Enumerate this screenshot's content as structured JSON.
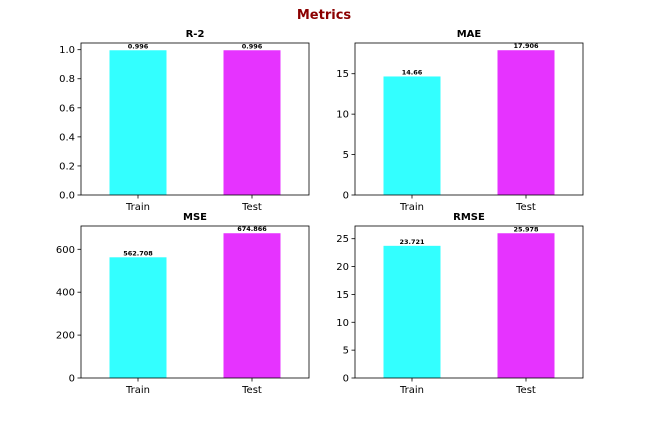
{
  "figure": {
    "suptitle": "Metrics",
    "suptitle_color": "#8b0000"
  },
  "colors": {
    "train": "#33ffff",
    "test": "#e633ff"
  },
  "chart_data": [
    {
      "type": "bar",
      "title": "R-2",
      "categories": [
        "Train",
        "Test"
      ],
      "values": [
        0.996,
        0.996
      ],
      "value_labels": [
        "0.996",
        "0.996"
      ],
      "ylim": [
        0,
        1.046
      ],
      "yticks": [
        0.0,
        0.2,
        0.4,
        0.6,
        0.8,
        1.0
      ],
      "ytick_labels": [
        "0.0",
        "0.2",
        "0.4",
        "0.6",
        "0.8",
        "1.0"
      ],
      "grid": false,
      "xlabel": "",
      "ylabel": ""
    },
    {
      "type": "bar",
      "title": "MAE",
      "categories": [
        "Train",
        "Test"
      ],
      "values": [
        14.66,
        17.906
      ],
      "value_labels": [
        "14.66",
        "17.906"
      ],
      "ylim": [
        0,
        18.8
      ],
      "yticks": [
        0,
        5,
        10,
        15
      ],
      "ytick_labels": [
        "0",
        "5",
        "10",
        "15"
      ],
      "grid": false,
      "xlabel": "",
      "ylabel": ""
    },
    {
      "type": "bar",
      "title": "MSE",
      "categories": [
        "Train",
        "Test"
      ],
      "values": [
        562.708,
        674.866
      ],
      "value_labels": [
        "562.708",
        "674.866"
      ],
      "ylim": [
        0,
        708.6
      ],
      "yticks": [
        0,
        200,
        400,
        600
      ],
      "ytick_labels": [
        "0",
        "200",
        "400",
        "600"
      ],
      "grid": false,
      "xlabel": "",
      "ylabel": ""
    },
    {
      "type": "bar",
      "title": "RMSE",
      "categories": [
        "Train",
        "Test"
      ],
      "values": [
        23.721,
        25.978
      ],
      "value_labels": [
        "23.721",
        "25.978"
      ],
      "ylim": [
        0,
        27.28
      ],
      "yticks": [
        0,
        5,
        10,
        15,
        20,
        25
      ],
      "ytick_labels": [
        "0",
        "5",
        "10",
        "15",
        "20",
        "25"
      ],
      "grid": false,
      "xlabel": "",
      "ylabel": ""
    }
  ]
}
